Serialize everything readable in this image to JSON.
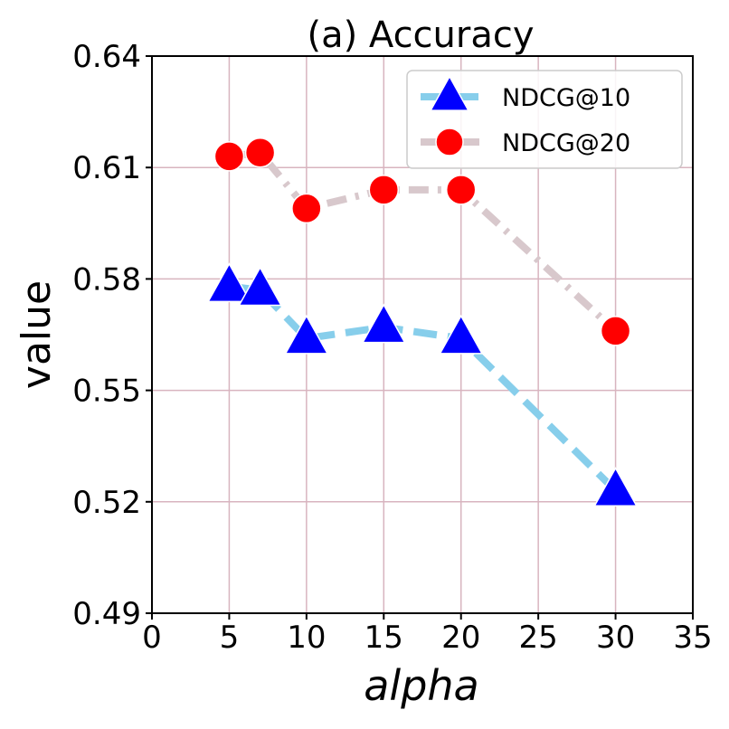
{
  "chart_data": {
    "type": "line",
    "title": "(a) Accuracy",
    "xlabel": "alpha",
    "ylabel": "value",
    "xlim": [
      0,
      35
    ],
    "ylim": [
      0.49,
      0.64
    ],
    "xticks": [
      "0",
      "5",
      "10",
      "15",
      "20",
      "25",
      "30",
      "35"
    ],
    "yticks": [
      "0.49",
      "0.52",
      "0.55",
      "0.58",
      "0.61",
      "0.64"
    ],
    "grid": true,
    "legend_position": "top-right",
    "x": [
      5,
      7,
      10,
      15,
      20,
      30
    ],
    "series": [
      {
        "name": "NDCG@10",
        "values": [
          0.578,
          0.577,
          0.564,
          0.567,
          0.564,
          0.523
        ],
        "line_color": "#87ceeb",
        "marker_color": "#0000ff",
        "marker": "triangle",
        "line_style": "dashed"
      },
      {
        "name": "NDCG@20",
        "values": [
          0.613,
          0.614,
          0.599,
          0.604,
          0.604,
          0.566
        ],
        "line_color": "#d8c8cc",
        "marker_color": "#ff0000",
        "marker": "circle",
        "line_style": "dashdot"
      }
    ]
  }
}
